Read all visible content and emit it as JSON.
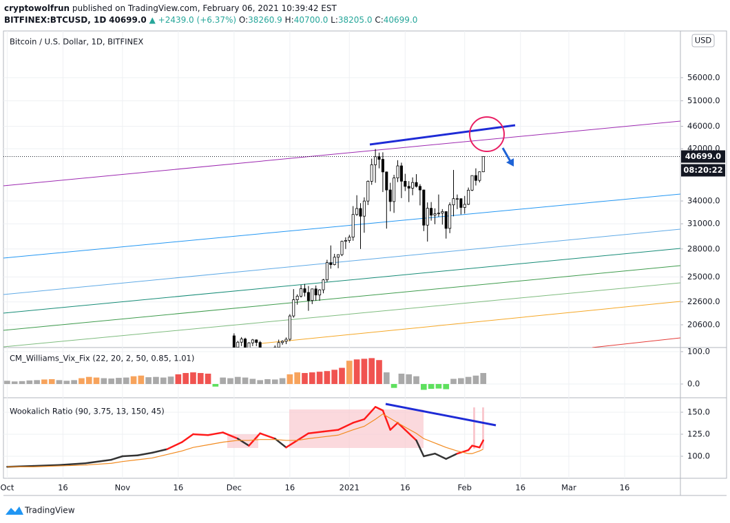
{
  "header": {
    "author": "cryptowolfrun",
    "published": "published on TradingView.com, February 06, 2021 10:39:42 EST",
    "symbol": "BITFINEX:BTCUSD, 1D",
    "price": "40699.0",
    "change": "▲ +2439.0 (+6.37%)",
    "ohlc": [
      {
        "label": "O:",
        "value": "38260.9"
      },
      {
        "label": "H:",
        "value": "40700.0"
      },
      {
        "label": "L:",
        "value": "38205.0"
      },
      {
        "label": "C:",
        "value": "40699.0"
      }
    ]
  },
  "footer": {
    "brand": "TradingView"
  },
  "chart_data": [
    {
      "type": "candlestick",
      "title": "Bitcoin / U.S. Dollar, 1D, BITFINEX",
      "currency": "USD",
      "last_price_label": "40699.0",
      "countdown": "08:20:22",
      "x": [
        "2020-12-01",
        "2020-12-02",
        "2020-12-03",
        "2020-12-04",
        "2020-12-05",
        "2020-12-06",
        "2020-12-07",
        "2020-12-08",
        "2020-12-09",
        "2020-12-10",
        "2020-12-11",
        "2020-12-12",
        "2020-12-13",
        "2020-12-14",
        "2020-12-15",
        "2020-12-16",
        "2020-12-17",
        "2020-12-18",
        "2020-12-19",
        "2020-12-20",
        "2020-12-21",
        "2020-12-22",
        "2020-12-23",
        "2020-12-24",
        "2020-12-25",
        "2020-12-26",
        "2020-12-27",
        "2020-12-28",
        "2020-12-29",
        "2020-12-30",
        "2020-12-31",
        "2021-01-01",
        "2021-01-02",
        "2021-01-03",
        "2021-01-04",
        "2021-01-05",
        "2021-01-06",
        "2021-01-07",
        "2021-01-08",
        "2021-01-09",
        "2021-01-10",
        "2021-01-11",
        "2021-01-12",
        "2021-01-13",
        "2021-01-14",
        "2021-01-15",
        "2021-01-16",
        "2021-01-17",
        "2021-01-18",
        "2021-01-19",
        "2021-01-20",
        "2021-01-21",
        "2021-01-22",
        "2021-01-23",
        "2021-01-24",
        "2021-01-25",
        "2021-01-26",
        "2021-01-27",
        "2021-01-28",
        "2021-01-29",
        "2021-01-30",
        "2021-01-31",
        "2021-02-01",
        "2021-02-02",
        "2021-02-03",
        "2021-02-04",
        "2021-02-05",
        "2021-02-06"
      ],
      "open": [
        19700,
        18800,
        19200,
        19450,
        18700,
        19150,
        19380,
        19180,
        18320,
        18550,
        18250,
        18040,
        18800,
        19170,
        19270,
        19430,
        21350,
        22800,
        23130,
        23840,
        23480,
        22730,
        23820,
        23240,
        23730,
        24710,
        26490,
        26280,
        27080,
        27360,
        28880,
        28980,
        29370,
        32190,
        32980,
        31970,
        33990,
        36820,
        39370,
        40670,
        40240,
        38240,
        35550,
        33920,
        37320,
        39190,
        36830,
        36070,
        35810,
        36640,
        36070,
        35550,
        30830,
        33010,
        32100,
        32290,
        32370,
        32570,
        30430,
        33470,
        34320,
        34320,
        33120,
        33540,
        35520,
        37680,
        36950,
        38260.9
      ],
      "high": [
        19900,
        19300,
        19600,
        19550,
        19200,
        19450,
        19420,
        19300,
        18650,
        18600,
        18300,
        18950,
        19400,
        19350,
        19570,
        21500,
        23800,
        23300,
        24200,
        24300,
        24100,
        23850,
        24150,
        23800,
        24800,
        26800,
        28400,
        27450,
        27400,
        28950,
        29350,
        29650,
        33300,
        34800,
        33700,
        34500,
        36950,
        40350,
        41950,
        41350,
        41400,
        38300,
        36600,
        37800,
        40100,
        39700,
        37950,
        36850,
        37400,
        37900,
        36400,
        35600,
        33800,
        33850,
        33000,
        34900,
        32900,
        32600,
        33800,
        38550,
        34900,
        34350,
        34700,
        35900,
        37700,
        38800,
        38300,
        40700
      ],
      "low": [
        18200,
        18350,
        18900,
        18600,
        18550,
        18900,
        18900,
        18200,
        17650,
        17900,
        17600,
        17950,
        18700,
        19000,
        19050,
        19280,
        21200,
        22350,
        23000,
        23100,
        21800,
        22400,
        22700,
        22700,
        23400,
        24500,
        25850,
        26200,
        25900,
        27200,
        28000,
        28700,
        28950,
        32000,
        28000,
        29900,
        33450,
        36300,
        36600,
        38800,
        35250,
        30400,
        32600,
        32400,
        36700,
        34400,
        35400,
        33850,
        34800,
        35900,
        33400,
        30100,
        28850,
        31400,
        30950,
        31900,
        30900,
        29200,
        29850,
        31950,
        32900,
        32200,
        32300,
        33450,
        35400,
        36200,
        36650,
        38205
      ],
      "close": [
        18800,
        19200,
        19450,
        18700,
        19150,
        19380,
        19180,
        18320,
        18550,
        18250,
        18040,
        18800,
        19170,
        19270,
        19430,
        21350,
        22800,
        23130,
        23840,
        23480,
        22730,
        23820,
        23240,
        23730,
        24710,
        26490,
        26280,
        27080,
        27360,
        28880,
        28980,
        29370,
        32190,
        32980,
        31970,
        33990,
        36820,
        39370,
        40670,
        40240,
        38240,
        35550,
        33920,
        37320,
        39190,
        36830,
        36070,
        35810,
        36640,
        36070,
        35550,
        30830,
        33010,
        32100,
        32290,
        32370,
        32570,
        30430,
        33470,
        34320,
        34320,
        33120,
        33540,
        35520,
        37680,
        36950,
        38260.9,
        40699
      ],
      "up_color": "#ffffff",
      "down_color": "#000000",
      "outline_color": "#000000",
      "log_scale": true,
      "grid": true,
      "ylim": [
        18790,
        67650
      ],
      "yticks": [
        {
          "value": 56000,
          "label": "56000.0"
        },
        {
          "value": 51000,
          "label": "51000.0"
        },
        {
          "value": 46000,
          "label": "46000.0"
        },
        {
          "value": 42000,
          "label": "42000.0"
        },
        {
          "value": 34000,
          "label": "34000.0"
        },
        {
          "value": 31000,
          "label": "31000.0"
        },
        {
          "value": 28000,
          "label": "28000.0"
        },
        {
          "value": 25000,
          "label": "25000.0"
        },
        {
          "value": 22600,
          "label": "22600.0"
        },
        {
          "value": 20600,
          "label": "20600.0"
        }
      ],
      "xlim": [
        "2020-09-30",
        "2021-03-31"
      ],
      "xticks": [
        {
          "value": "2020-10-01",
          "label": "Oct"
        },
        {
          "value": "2020-10-16",
          "label": "16"
        },
        {
          "value": "2020-11-01",
          "label": "Nov"
        },
        {
          "value": "2020-11-16",
          "label": "16"
        },
        {
          "value": "2020-12-01",
          "label": "Dec"
        },
        {
          "value": "2020-12-16",
          "label": "16"
        },
        {
          "value": "2021-01-01",
          "label": "2021"
        },
        {
          "value": "2021-01-16",
          "label": "16"
        },
        {
          "value": "2021-02-01",
          "label": "Feb"
        },
        {
          "value": "2021-02-16",
          "label": "16"
        },
        {
          "value": "2021-03-01",
          "label": "Mar"
        },
        {
          "value": "2021-03-16",
          "label": "16"
        }
      ]
    },
    {
      "type": "bar",
      "title": "CM_Williams_Vix_Fix (22, 20, 2, 50, 0.85, 1.01)",
      "x": [
        "2020-10-01",
        "2020-10-03",
        "2020-10-05",
        "2020-10-07",
        "2020-10-09",
        "2020-10-11",
        "2020-10-13",
        "2020-10-15",
        "2020-10-17",
        "2020-10-19",
        "2020-10-21",
        "2020-10-23",
        "2020-10-25",
        "2020-10-27",
        "2020-10-29",
        "2020-10-31",
        "2020-11-02",
        "2020-11-04",
        "2020-11-06",
        "2020-11-08",
        "2020-11-10",
        "2020-11-12",
        "2020-11-14",
        "2020-11-16",
        "2020-11-18",
        "2020-11-20",
        "2020-11-22",
        "2020-11-24",
        "2020-11-26",
        "2020-11-28",
        "2020-11-30",
        "2020-12-02",
        "2020-12-04",
        "2020-12-06",
        "2020-12-08",
        "2020-12-10",
        "2020-12-12",
        "2020-12-14",
        "2020-12-16",
        "2020-12-18",
        "2020-12-20",
        "2020-12-22",
        "2020-12-24",
        "2020-12-26",
        "2020-12-28",
        "2020-12-30",
        "2021-01-01",
        "2021-01-03",
        "2021-01-05",
        "2021-01-07",
        "2021-01-09",
        "2021-01-11",
        "2021-01-13",
        "2021-01-15",
        "2021-01-17",
        "2021-01-19",
        "2021-01-21",
        "2021-01-23",
        "2021-01-25",
        "2021-01-27",
        "2021-01-29",
        "2021-01-31",
        "2021-02-02",
        "2021-02-04",
        "2021-02-06"
      ],
      "values": [
        10,
        8,
        9,
        11,
        12,
        14,
        15,
        12,
        10,
        12,
        18,
        22,
        20,
        18,
        17,
        19,
        20,
        24,
        26,
        21,
        22,
        20,
        23,
        30,
        34,
        36,
        34,
        32,
        -8,
        20,
        18,
        22,
        20,
        16,
        12,
        15,
        14,
        18,
        30,
        36,
        34,
        36,
        38,
        40,
        44,
        50,
        72,
        76,
        78,
        80,
        74,
        36,
        -12,
        32,
        30,
        24,
        -18,
        -15,
        -14,
        -16,
        16,
        18,
        22,
        26,
        34
      ],
      "colors": [
        "#a9a9a9",
        "#a9a9a9",
        "#a9a9a9",
        "#a9a9a9",
        "#a9a9a9",
        "#f7a35c",
        "#f7a35c",
        "#a9a9a9",
        "#a9a9a9",
        "#a9a9a9",
        "#f7a35c",
        "#f7a35c",
        "#f7a35c",
        "#a9a9a9",
        "#a9a9a9",
        "#a9a9a9",
        "#a9a9a9",
        "#f7a35c",
        "#f7a35c",
        "#a9a9a9",
        "#a9a9a9",
        "#a9a9a9",
        "#a9a9a9",
        "#f05350",
        "#f05350",
        "#f05350",
        "#f05350",
        "#f05350",
        "#5ee05e",
        "#a9a9a9",
        "#a9a9a9",
        "#a9a9a9",
        "#a9a9a9",
        "#a9a9a9",
        "#a9a9a9",
        "#a9a9a9",
        "#a9a9a9",
        "#a9a9a9",
        "#f7a35c",
        "#f7a35c",
        "#f05350",
        "#f05350",
        "#f05350",
        "#f05350",
        "#f05350",
        "#f05350",
        "#f7a35c",
        "#f05350",
        "#f05350",
        "#f05350",
        "#f05350",
        "#a9a9a9",
        "#5ee05e",
        "#a9a9a9",
        "#a9a9a9",
        "#a9a9a9",
        "#5ee05e",
        "#5ee05e",
        "#5ee05e",
        "#5ee05e",
        "#a9a9a9",
        "#a9a9a9",
        "#a9a9a9",
        "#a9a9a9",
        "#a9a9a9"
      ],
      "ylim": [
        -42.5,
        112.8
      ],
      "yticks": [
        {
          "value": 100,
          "label": "100.0"
        },
        {
          "value": 0,
          "label": "0.0"
        }
      ]
    },
    {
      "type": "line",
      "title": "Wookalich Ratio (90, 3.75, 13, 150, 45)",
      "x": [
        "2020-10-01",
        "2020-10-08",
        "2020-10-15",
        "2020-10-22",
        "2020-10-29",
        "2020-11-01",
        "2020-11-05",
        "2020-11-09",
        "2020-11-13",
        "2020-11-17",
        "2020-11-20",
        "2020-11-24",
        "2020-11-28",
        "2020-12-02",
        "2020-12-05",
        "2020-12-08",
        "2020-12-12",
        "2020-12-15",
        "2020-12-18",
        "2020-12-21",
        "2020-12-25",
        "2020-12-29",
        "2021-01-02",
        "2021-01-05",
        "2021-01-08",
        "2021-01-10",
        "2021-01-12",
        "2021-01-14",
        "2021-01-16",
        "2021-01-19",
        "2021-01-21",
        "2021-01-24",
        "2021-01-27",
        "2021-01-30",
        "2021-02-02",
        "2021-02-03",
        "2021-02-05",
        "2021-02-06"
      ],
      "series": [
        {
          "values": [
            88,
            89,
            90,
            92,
            96,
            100,
            101,
            104,
            108,
            116,
            125,
            124,
            127,
            120,
            112,
            126,
            120,
            110,
            118,
            126,
            128,
            130,
            138,
            142,
            156,
            152,
            130,
            138,
            130,
            118,
            100,
            103,
            97,
            103,
            107,
            112,
            110,
            118
          ],
          "colors": [
            "#333333",
            "#333333",
            "#333333",
            "#333333",
            "#333333",
            "#333333",
            "#333333",
            "#333333",
            "#333333",
            "#ff1a1a",
            "#ff1a1a",
            "#ff1a1a",
            "#ff1a1a",
            "#ff1a1a",
            "#333333",
            "#ff1a1a",
            "#ff1a1a",
            "#333333",
            "#ff1a1a",
            "#ff1a1a",
            "#ff1a1a",
            "#ff1a1a",
            "#ff1a1a",
            "#ff1a1a",
            "#ff1a1a",
            "#ff1a1a",
            "#ff1a1a",
            "#ff1a1a",
            "#ff1a1a",
            "#ff1a1a",
            "#333333",
            "#333333",
            "#333333",
            "#333333",
            "#ff1a1a",
            "#ff1a1a",
            "#ff1a1a",
            "#ff1a1a"
          ]
        },
        {
          "values": [
            88,
            88,
            89,
            90,
            92,
            94,
            96,
            98,
            102,
            106,
            110,
            113,
            116,
            118,
            118,
            119,
            119,
            118,
            118,
            120,
            122,
            124,
            130,
            134,
            142,
            148,
            143,
            138,
            133,
            126,
            120,
            115,
            110,
            106,
            103,
            103,
            106,
            108
          ],
          "color": "#f28a1e"
        }
      ],
      "ylim": [
        75,
        166.4
      ],
      "yticks": [
        {
          "value": 150,
          "label": "150.0"
        },
        {
          "value": 125,
          "label": "125.0"
        },
        {
          "value": 100,
          "label": "100.0"
        }
      ]
    }
  ]
}
